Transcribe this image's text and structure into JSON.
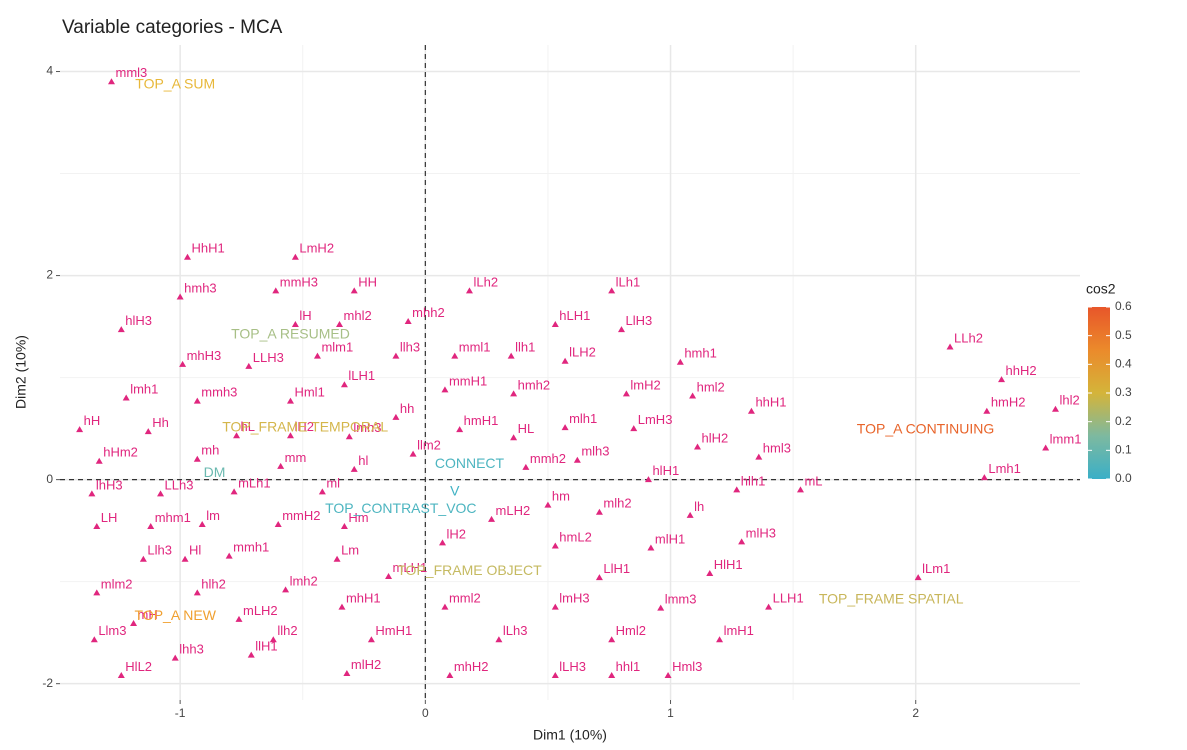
{
  "chart_data": {
    "type": "scatter",
    "title": "Variable categories - MCA",
    "x_label": "Dim1 (10%)",
    "y_label": "Dim2 (10%)",
    "xlim": [
      -1.49,
      2.67
    ],
    "ylim": [
      -2.16,
      4.26
    ],
    "xticks": [
      -1,
      0,
      1,
      2
    ],
    "yticks": [
      -2,
      0,
      2,
      4
    ],
    "grid": true,
    "reference_lines": {
      "x": 0,
      "y": 0
    },
    "point_color": "#E0267E",
    "points": [
      {
        "label": "mml3",
        "x": -1.28,
        "y": 3.9
      },
      {
        "label": "HhH1",
        "x": -0.97,
        "y": 2.18
      },
      {
        "label": "LmH2",
        "x": -0.53,
        "y": 2.18
      },
      {
        "label": "HH",
        "x": -0.29,
        "y": 1.85
      },
      {
        "label": "lLh2",
        "x": 0.18,
        "y": 1.85
      },
      {
        "label": "lLh1",
        "x": 0.76,
        "y": 1.85
      },
      {
        "label": "hmh3",
        "x": -1.0,
        "y": 1.79
      },
      {
        "label": "mmH3",
        "x": -0.61,
        "y": 1.85
      },
      {
        "label": "lH",
        "x": -0.53,
        "y": 1.52
      },
      {
        "label": "mhl2",
        "x": -0.35,
        "y": 1.52
      },
      {
        "label": "mhh2",
        "x": -0.07,
        "y": 1.55
      },
      {
        "label": "hLH1",
        "x": 0.53,
        "y": 1.52
      },
      {
        "label": "LlH3",
        "x": 0.8,
        "y": 1.47
      },
      {
        "label": "hlH3",
        "x": -1.24,
        "y": 1.47
      },
      {
        "label": "mlm1",
        "x": -0.44,
        "y": 1.21
      },
      {
        "label": "llh3",
        "x": -0.12,
        "y": 1.21
      },
      {
        "label": "mml1",
        "x": 0.12,
        "y": 1.21
      },
      {
        "label": "llh1",
        "x": 0.35,
        "y": 1.21
      },
      {
        "label": "hmh1",
        "x": 1.04,
        "y": 1.15
      },
      {
        "label": "mhH3",
        "x": -0.99,
        "y": 1.13
      },
      {
        "label": "LLH3",
        "x": -0.72,
        "y": 1.11
      },
      {
        "label": "lLH2",
        "x": 0.57,
        "y": 1.16
      },
      {
        "label": "lLH1",
        "x": -0.33,
        "y": 0.93
      },
      {
        "label": "mmH1",
        "x": 0.08,
        "y": 0.88
      },
      {
        "label": "Hml1",
        "x": -0.55,
        "y": 0.77
      },
      {
        "label": "hmh2",
        "x": 0.36,
        "y": 0.84
      },
      {
        "label": "lmH2",
        "x": 0.82,
        "y": 0.84
      },
      {
        "label": "hml2",
        "x": 1.09,
        "y": 0.82
      },
      {
        "label": "lmh1",
        "x": -1.22,
        "y": 0.8
      },
      {
        "label": "mmh3",
        "x": -0.93,
        "y": 0.77
      },
      {
        "label": "hh",
        "x": -0.12,
        "y": 0.61
      },
      {
        "label": "hH",
        "x": -1.41,
        "y": 0.49
      },
      {
        "label": "Hh",
        "x": -1.13,
        "y": 0.47
      },
      {
        "label": "hL",
        "x": -0.77,
        "y": 0.43
      },
      {
        "label": "lH2",
        "x": -0.55,
        "y": 0.43
      },
      {
        "label": "lmh3",
        "x": -0.31,
        "y": 0.42
      },
      {
        "label": "hmH1",
        "x": 0.14,
        "y": 0.49
      },
      {
        "label": "HL",
        "x": 0.36,
        "y": 0.41
      },
      {
        "label": "mlh1",
        "x": 0.57,
        "y": 0.51
      },
      {
        "label": "LmH3",
        "x": 0.85,
        "y": 0.5
      },
      {
        "label": "hhH1",
        "x": 1.33,
        "y": 0.67
      },
      {
        "label": "hlH2",
        "x": 1.11,
        "y": 0.32
      },
      {
        "label": "hml3",
        "x": 1.36,
        "y": 0.22
      },
      {
        "label": "mh",
        "x": -0.93,
        "y": 0.2
      },
      {
        "label": "mm",
        "x": -0.59,
        "y": 0.13
      },
      {
        "label": "hl",
        "x": -0.29,
        "y": 0.1
      },
      {
        "label": "llm2",
        "x": -0.05,
        "y": 0.25
      },
      {
        "label": "mlh3",
        "x": 0.62,
        "y": 0.19
      },
      {
        "label": "mmh2",
        "x": 0.41,
        "y": 0.12
      },
      {
        "label": "hlH1",
        "x": 0.91,
        "y": 0.0
      },
      {
        "label": "hlh1",
        "x": 1.27,
        "y": -0.1
      },
      {
        "label": "mL",
        "x": 1.53,
        "y": -0.1
      },
      {
        "label": "hHm2",
        "x": -1.33,
        "y": 0.18
      },
      {
        "label": "lhH3",
        "x": -1.36,
        "y": -0.14
      },
      {
        "label": "LLh3",
        "x": -1.08,
        "y": -0.14
      },
      {
        "label": "mLh1",
        "x": -0.78,
        "y": -0.12
      },
      {
        "label": "ml",
        "x": -0.42,
        "y": -0.12
      },
      {
        "label": "LH",
        "x": -1.34,
        "y": -0.46
      },
      {
        "label": "mhm1",
        "x": -1.12,
        "y": -0.46
      },
      {
        "label": "lm",
        "x": -0.91,
        "y": -0.44
      },
      {
        "label": "mmH2",
        "x": -0.6,
        "y": -0.44
      },
      {
        "label": "Hm",
        "x": -0.33,
        "y": -0.46
      },
      {
        "label": "hm",
        "x": 0.5,
        "y": -0.25
      },
      {
        "label": "mlh2",
        "x": 0.71,
        "y": -0.32
      },
      {
        "label": "lh",
        "x": 1.08,
        "y": -0.35
      },
      {
        "label": "mLH2",
        "x": 0.27,
        "y": -0.39
      },
      {
        "label": "hmL2",
        "x": 0.53,
        "y": -0.65
      },
      {
        "label": "mlH1",
        "x": 0.92,
        "y": -0.67
      },
      {
        "label": "mlH3",
        "x": 1.29,
        "y": -0.61
      },
      {
        "label": "Llh3",
        "x": -1.15,
        "y": -0.78
      },
      {
        "label": "Hl",
        "x": -0.98,
        "y": -0.78
      },
      {
        "label": "mmh1",
        "x": -0.8,
        "y": -0.75
      },
      {
        "label": "lH2",
        "x": 0.07,
        "y": -0.62
      },
      {
        "label": "Lm",
        "x": -0.36,
        "y": -0.78
      },
      {
        "label": "HlH1",
        "x": 1.16,
        "y": -0.92
      },
      {
        "label": "mlm2",
        "x": -1.34,
        "y": -1.11
      },
      {
        "label": "hlh2",
        "x": -0.93,
        "y": -1.11
      },
      {
        "label": "lmh2",
        "x": -0.57,
        "y": -1.08
      },
      {
        "label": "mLH1",
        "x": -0.15,
        "y": -0.95
      },
      {
        "label": "LlH1",
        "x": 0.71,
        "y": -0.96
      },
      {
        "label": "mml2",
        "x": 0.08,
        "y": -1.25
      },
      {
        "label": "mLH2",
        "x": -0.76,
        "y": -1.37
      },
      {
        "label": "mhH1",
        "x": -0.34,
        "y": -1.25
      },
      {
        "label": "lmH3",
        "x": 0.53,
        "y": -1.25
      },
      {
        "label": "lmm3",
        "x": 0.96,
        "y": -1.26
      },
      {
        "label": "LLH1",
        "x": 1.4,
        "y": -1.25
      },
      {
        "label": "mH",
        "x": -1.19,
        "y": -1.41
      },
      {
        "label": "lLm1",
        "x": 2.01,
        "y": -0.96
      },
      {
        "label": "llh2",
        "x": -0.62,
        "y": -1.57
      },
      {
        "label": "HmH1",
        "x": -0.22,
        "y": -1.57
      },
      {
        "label": "lLh3",
        "x": 0.3,
        "y": -1.57
      },
      {
        "label": "Hml2",
        "x": 0.76,
        "y": -1.57
      },
      {
        "label": "lmH1",
        "x": 1.2,
        "y": -1.57
      },
      {
        "label": "Llm3",
        "x": -1.35,
        "y": -1.57
      },
      {
        "label": "lhh3",
        "x": -1.02,
        "y": -1.75
      },
      {
        "label": "llH1",
        "x": -0.71,
        "y": -1.72
      },
      {
        "label": "HlL2",
        "x": -1.24,
        "y": -1.92
      },
      {
        "label": "mlH2",
        "x": -0.32,
        "y": -1.9
      },
      {
        "label": "mhH2",
        "x": 0.1,
        "y": -1.92
      },
      {
        "label": "lLH3",
        "x": 0.53,
        "y": -1.92
      },
      {
        "label": "hhl1",
        "x": 0.76,
        "y": -1.92
      },
      {
        "label": "Hml3",
        "x": 0.99,
        "y": -1.92
      },
      {
        "label": "LLh2",
        "x": 2.14,
        "y": 1.3
      },
      {
        "label": "hhH2",
        "x": 2.35,
        "y": 0.98
      },
      {
        "label": "hmH2",
        "x": 2.29,
        "y": 0.67
      },
      {
        "label": "lhl2",
        "x": 2.57,
        "y": 0.69
      },
      {
        "label": "lmm1",
        "x": 2.53,
        "y": 0.31
      },
      {
        "label": "Lmh1",
        "x": 2.28,
        "y": 0.02
      }
    ],
    "supplementary": [
      {
        "label": "TOP_A SUM",
        "x": -1.02,
        "y": 3.87,
        "color": "#E8B83A"
      },
      {
        "label": "TOP_A RESUMED",
        "x": -0.55,
        "y": 1.42,
        "color": "#A7BF86"
      },
      {
        "label": "TOP_FRAME TEMPORAL",
        "x": -0.49,
        "y": 0.51,
        "color": "#D4B64B"
      },
      {
        "label": "DM",
        "x": -0.86,
        "y": 0.06,
        "color": "#6BB9B0"
      },
      {
        "label": "CONNECT",
        "x": 0.18,
        "y": 0.15,
        "color": "#4DB5C0"
      },
      {
        "label": "V",
        "x": 0.12,
        "y": -0.12,
        "color": "#3FB2C4"
      },
      {
        "label": "TOP_CONTRAST_VOC",
        "x": -0.1,
        "y": -0.29,
        "color": "#4DB5C0"
      },
      {
        "label": "TOP_FRAME OBJECT",
        "x": 0.18,
        "y": -0.9,
        "color": "#C5BA61"
      },
      {
        "label": "TOP_A NEW",
        "x": -1.02,
        "y": -1.34,
        "color": "#F0A030"
      },
      {
        "label": "TOP_FRAME SPATIAL",
        "x": 1.9,
        "y": -1.18,
        "color": "#C8B65A"
      },
      {
        "label": "TOP_A CONTINUING",
        "x": 2.04,
        "y": 0.49,
        "color": "#E8642A"
      }
    ],
    "colorbar": {
      "title": "cos2",
      "lim": [
        0,
        0.6
      ],
      "colors": [
        "#3AAFC7",
        "#7DB9A0",
        "#D4B43A",
        "#EB8A2B",
        "#E8562A"
      ],
      "ticks": [
        {
          "value": 0,
          "label": "0.0"
        },
        0.1,
        0.2,
        0.3,
        0.4,
        0.5,
        0.6
      ]
    }
  }
}
